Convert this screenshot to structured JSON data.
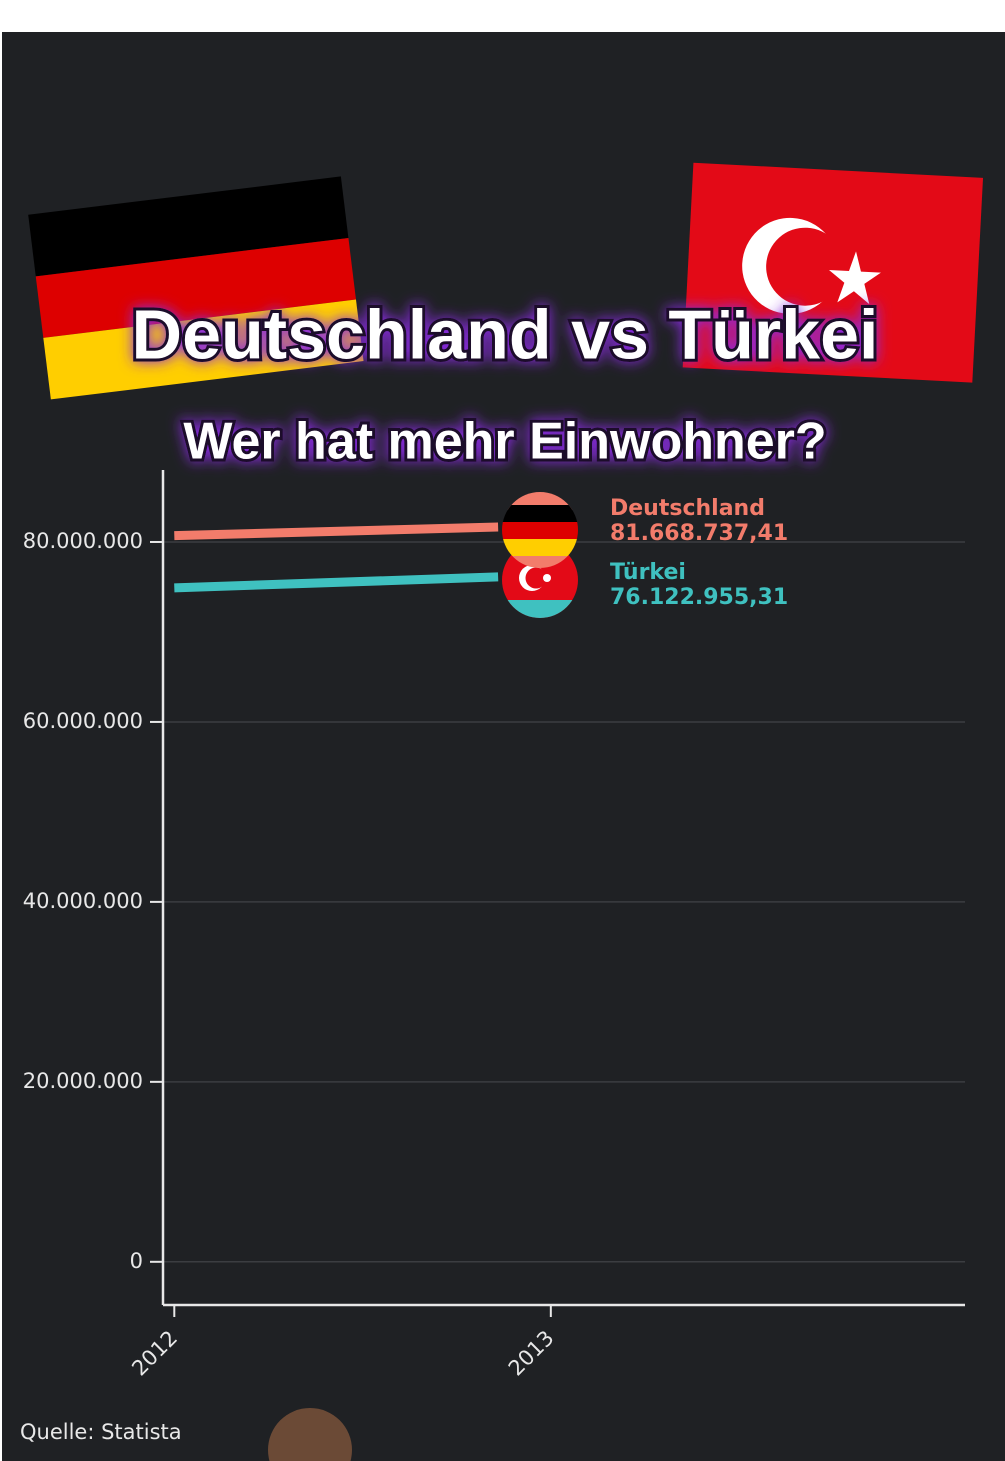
{
  "chart_data": {
    "type": "line",
    "title": "Deutschland vs Türkei",
    "subtitle": "Wer hat mehr Einwohner?",
    "source": "Quelle: Statista",
    "x": [
      2012,
      2012.86
    ],
    "xlim": [
      2011.97,
      2014.1
    ],
    "xticks": [
      2012,
      2013
    ],
    "ylim": [
      -4800000,
      88000000
    ],
    "yticks": [
      0,
      {
        "value": 20000000,
        "label": "20.000.000"
      },
      {
        "value": 40000000,
        "label": "40.000.000"
      },
      {
        "value": 60000000,
        "label": "60.000.000"
      },
      {
        "value": 80000000,
        "label": "80.000.000"
      }
    ],
    "grid": true,
    "series": [
      {
        "name": "Deutschland",
        "color": "#f27c6b",
        "values": [
          80700000,
          81668737.41
        ],
        "value_labels": [
          null,
          "81.668.737,41"
        ]
      },
      {
        "name": "Türkei",
        "color": "#3fc1c0",
        "values": [
          74900000,
          76122955.31
        ],
        "value_labels": [
          null,
          "76.122.955,31"
        ]
      }
    ]
  }
}
